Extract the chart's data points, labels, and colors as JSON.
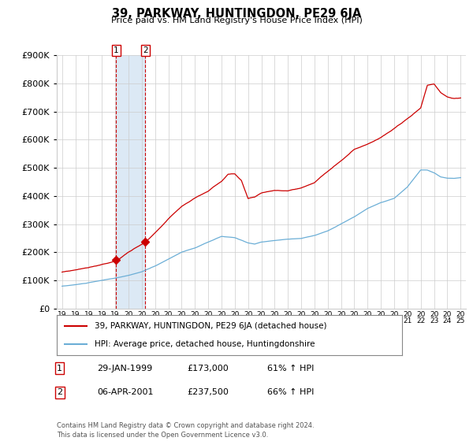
{
  "title": "39, PARKWAY, HUNTINGDON, PE29 6JA",
  "subtitle": "Price paid vs. HM Land Registry's House Price Index (HPI)",
  "legend_line1": "39, PARKWAY, HUNTINGDON, PE29 6JA (detached house)",
  "legend_line2": "HPI: Average price, detached house, Huntingdonshire",
  "transaction1_date": "29-JAN-1999",
  "transaction1_price": 173000,
  "transaction1_hpi": "61% ↑ HPI",
  "transaction2_date": "06-APR-2001",
  "transaction2_price": 237500,
  "transaction2_hpi": "66% ↑ HPI",
  "footnote": "Contains HM Land Registry data © Crown copyright and database right 2024.\nThis data is licensed under the Open Government Licence v3.0.",
  "hpi_color": "#6baed6",
  "price_color": "#cc0000",
  "marker_color": "#cc0000",
  "vline_color": "#cc0000",
  "shade_color": "#dce9f5",
  "grid_color": "#cccccc",
  "background_color": "#ffffff",
  "ylim": [
    0,
    900000
  ],
  "yticks": [
    0,
    100000,
    200000,
    300000,
    400000,
    500000,
    600000,
    700000,
    800000,
    900000
  ],
  "transaction1_x": 1999.08,
  "transaction2_x": 2001.27,
  "hpi_seed": 10,
  "price_seed": 77
}
